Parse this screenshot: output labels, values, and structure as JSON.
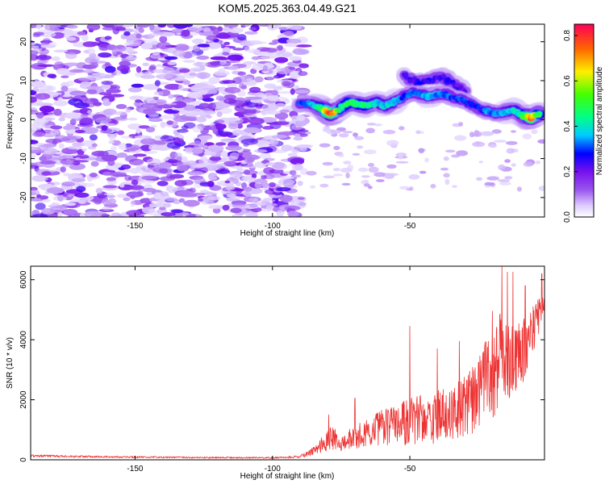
{
  "figure": {
    "title": "KOM5.2025.363.04.49.G21"
  },
  "colors": {
    "background": "#ffffff",
    "axis": "#000000",
    "snr_line": "#ee3333"
  },
  "chart_data": [
    {
      "type": "heatmap",
      "name": "spectrogram",
      "xlabel": "Height of straight line (km)",
      "ylabel": "Frequency (Hz)",
      "xlim": [
        -188,
        -1
      ],
      "ylim": [
        -25,
        24.5
      ],
      "x_ticks": [
        -150,
        -100,
        -50
      ],
      "y_ticks": [
        -20,
        -10,
        0,
        10,
        20
      ],
      "x_tick_labels": [
        "-150",
        "-100",
        "-50"
      ],
      "y_tick_labels": [
        "-20",
        "-10",
        "0",
        "10",
        "20"
      ],
      "noise_region_x": [
        -188,
        -88
      ],
      "noise_region_y": [
        -25,
        24.5
      ],
      "signal_ridge": [
        {
          "x": -90,
          "y": 4,
          "amp": 0.28
        },
        {
          "x": -86,
          "y": 4,
          "amp": 0.32
        },
        {
          "x": -82,
          "y": 3,
          "amp": 0.45
        },
        {
          "x": -79,
          "y": 1.5,
          "amp": 0.82
        },
        {
          "x": -75,
          "y": 3,
          "amp": 0.4
        },
        {
          "x": -72,
          "y": 4.5,
          "amp": 0.48
        },
        {
          "x": -69,
          "y": 4,
          "amp": 0.42
        },
        {
          "x": -66,
          "y": 3.5,
          "amp": 0.45
        },
        {
          "x": -62,
          "y": 4.5,
          "amp": 0.38
        },
        {
          "x": -59,
          "y": 3.5,
          "amp": 0.35
        },
        {
          "x": -56,
          "y": 4.5,
          "amp": 0.38
        },
        {
          "x": -52,
          "y": 6,
          "amp": 0.28
        },
        {
          "x": -49,
          "y": 7,
          "amp": 0.32
        },
        {
          "x": -46,
          "y": 6.5,
          "amp": 0.3
        },
        {
          "x": -43,
          "y": 6,
          "amp": 0.36
        },
        {
          "x": -40,
          "y": 6.5,
          "amp": 0.3
        },
        {
          "x": -37,
          "y": 6.5,
          "amp": 0.3
        },
        {
          "x": -34,
          "y": 5.5,
          "amp": 0.28
        },
        {
          "x": -31,
          "y": 5,
          "amp": 0.3
        },
        {
          "x": -28,
          "y": 4,
          "amp": 0.28
        },
        {
          "x": -24,
          "y": 2.5,
          "amp": 0.25
        },
        {
          "x": -21,
          "y": 2,
          "amp": 0.32
        },
        {
          "x": -18,
          "y": 1.5,
          "amp": 0.3
        },
        {
          "x": -15,
          "y": 2,
          "amp": 0.35
        },
        {
          "x": -12,
          "y": 2.5,
          "amp": 0.38
        },
        {
          "x": -9,
          "y": 1,
          "amp": 0.4
        },
        {
          "x": -6,
          "y": 0.5,
          "amp": 0.75
        },
        {
          "x": -3,
          "y": 1.5,
          "amp": 0.45
        }
      ],
      "signal_upper_branch": [
        {
          "x": -52,
          "y": 11,
          "amp": 0.22
        },
        {
          "x": -48,
          "y": 9.5,
          "amp": 0.22
        },
        {
          "x": -43,
          "y": 10,
          "amp": 0.24
        },
        {
          "x": -38,
          "y": 11,
          "amp": 0.24
        },
        {
          "x": -34,
          "y": 9,
          "amp": 0.22
        },
        {
          "x": -30,
          "y": 7.5,
          "amp": 0.2
        }
      ],
      "colorbar": {
        "label": "Normalized spectral amplitude",
        "range": [
          0,
          0.85
        ],
        "ticks": [
          0.0,
          0.2,
          0.4,
          0.6,
          0.8
        ],
        "tick_labels": [
          "0.0",
          "0.2",
          "0.4",
          "0.6",
          "0.8"
        ],
        "stops": [
          {
            "v": 0.0,
            "color": "#ffffff"
          },
          {
            "v": 0.05,
            "color": "#ddccff"
          },
          {
            "v": 0.12,
            "color": "#9955ee"
          },
          {
            "v": 0.2,
            "color": "#7711ee"
          },
          {
            "v": 0.28,
            "color": "#0000ff"
          },
          {
            "v": 0.36,
            "color": "#00ccff"
          },
          {
            "v": 0.44,
            "color": "#00ff88"
          },
          {
            "v": 0.54,
            "color": "#44ff00"
          },
          {
            "v": 0.64,
            "color": "#ffee00"
          },
          {
            "v": 0.74,
            "color": "#ff6600"
          },
          {
            "v": 0.85,
            "color": "#ff0055"
          }
        ]
      }
    },
    {
      "type": "line",
      "name": "snr",
      "xlabel": "Height of straight line (km)",
      "ylabel": "SNR (10 * v/v)",
      "xlim": [
        -188,
        -1
      ],
      "ylim": [
        0,
        6450
      ],
      "x_ticks": [
        -150,
        -100,
        -50
      ],
      "y_ticks": [
        0,
        2000,
        4000,
        6000
      ],
      "x_tick_labels": [
        "-150",
        "-100",
        "-50"
      ],
      "y_tick_labels": [
        "0",
        "2000",
        "4000",
        "6000"
      ],
      "envelope": [
        {
          "x": -188,
          "base": 120,
          "amp": 80
        },
        {
          "x": -160,
          "base": 90,
          "amp": 60
        },
        {
          "x": -130,
          "base": 70,
          "amp": 50
        },
        {
          "x": -100,
          "base": 60,
          "amp": 50
        },
        {
          "x": -90,
          "base": 90,
          "amp": 80
        },
        {
          "x": -84,
          "base": 300,
          "amp": 350
        },
        {
          "x": -79,
          "base": 600,
          "amp": 800
        },
        {
          "x": -74,
          "base": 500,
          "amp": 600
        },
        {
          "x": -68,
          "base": 700,
          "amp": 900
        },
        {
          "x": -60,
          "base": 900,
          "amp": 1200
        },
        {
          "x": -52,
          "base": 1000,
          "amp": 1500
        },
        {
          "x": -45,
          "base": 1100,
          "amp": 1700
        },
        {
          "x": -38,
          "base": 1200,
          "amp": 1800
        },
        {
          "x": -30,
          "base": 1400,
          "amp": 2100
        },
        {
          "x": -25,
          "base": 1900,
          "amp": 2400
        },
        {
          "x": -20,
          "base": 2400,
          "amp": 3200
        },
        {
          "x": -16,
          "base": 3000,
          "amp": 3200
        },
        {
          "x": -12,
          "base": 3000,
          "amp": 2600
        },
        {
          "x": -8,
          "base": 3400,
          "amp": 2000
        },
        {
          "x": -4,
          "base": 4400,
          "amp": 1400
        },
        {
          "x": -1,
          "base": 5100,
          "amp": 900
        }
      ],
      "peaks": [
        {
          "x": -79.5,
          "y": 1500
        },
        {
          "x": -70,
          "y": 2050
        },
        {
          "x": -50,
          "y": 4450
        },
        {
          "x": -40,
          "y": 3700
        },
        {
          "x": -32,
          "y": 3950
        },
        {
          "x": -20,
          "y": 4950
        },
        {
          "x": -16.5,
          "y": 6450
        },
        {
          "x": -14.5,
          "y": 6250
        },
        {
          "x": -12.5,
          "y": 6250
        },
        {
          "x": -8,
          "y": 5800
        },
        {
          "x": -2,
          "y": 6200
        }
      ]
    }
  ]
}
